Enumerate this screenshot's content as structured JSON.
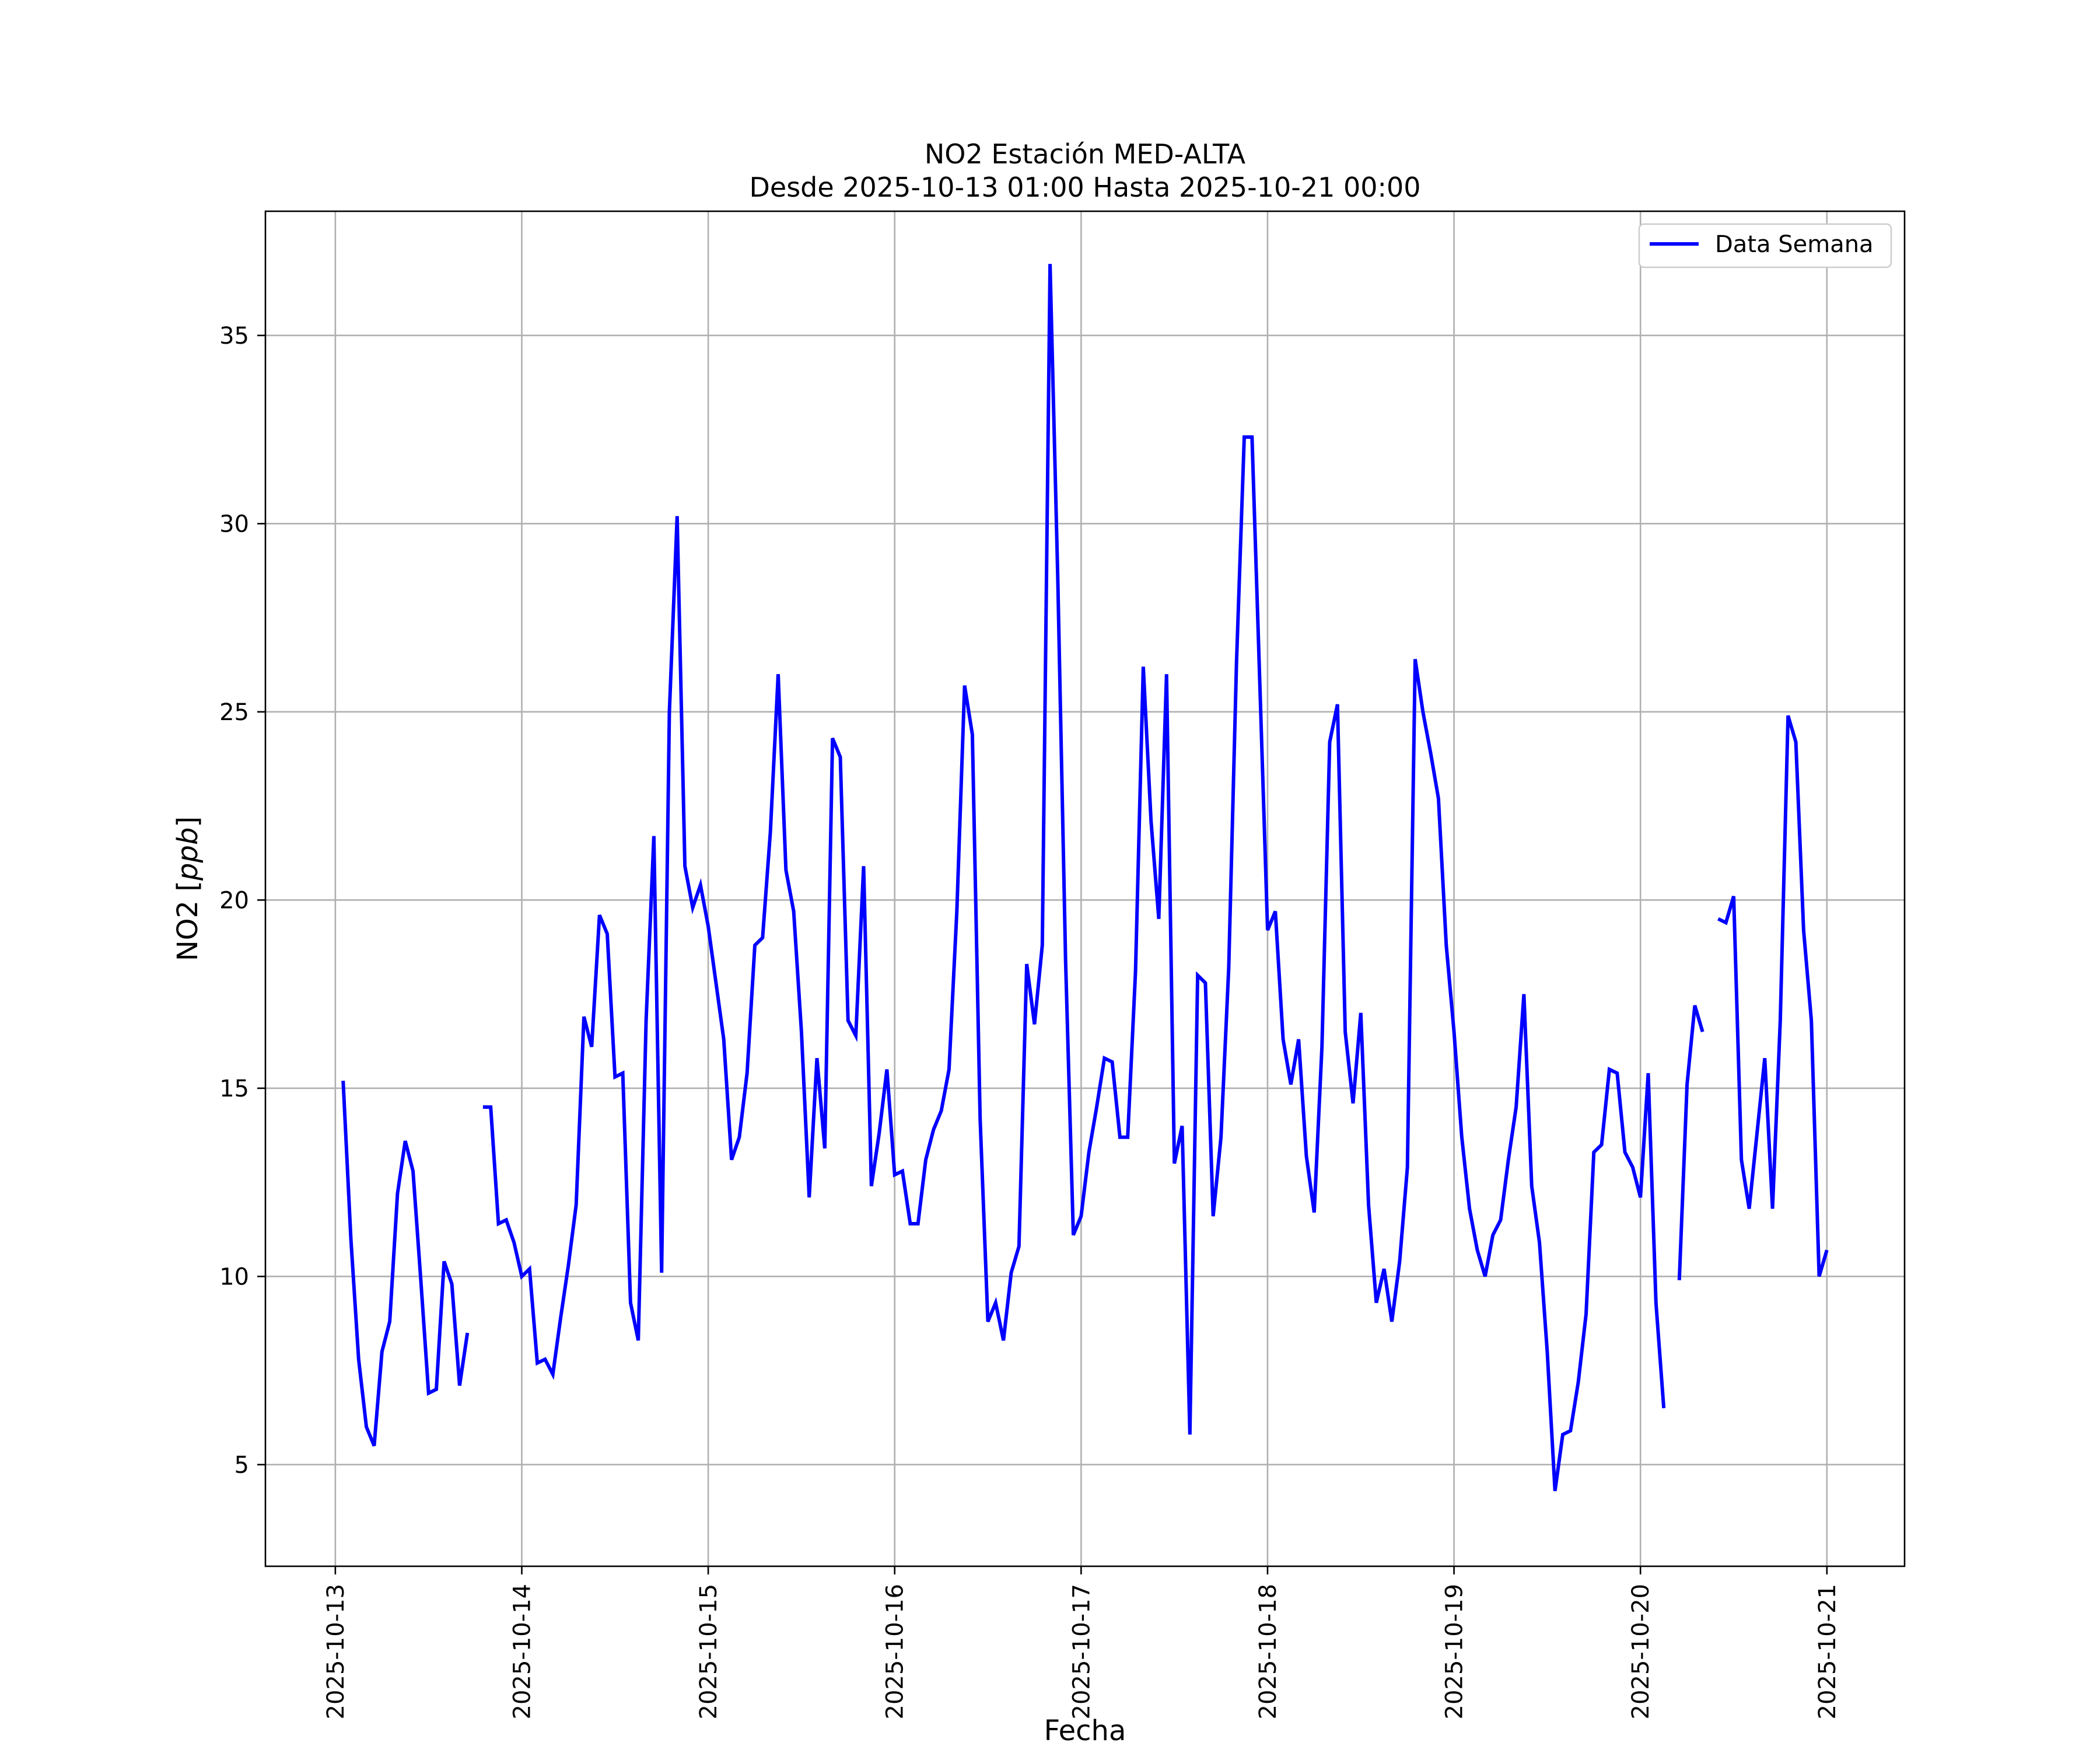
{
  "chart_data": {
    "type": "line",
    "title_line1": "NO2 Estación MED-ALTA",
    "title_line2": "Desde 2025-10-13 01:00 Hasta 2025-10-21 00:00",
    "xlabel": "Fecha",
    "ylabel": "NO2 [ppb]",
    "ylim": [
      2.3,
      38.3
    ],
    "xlim": [
      "2025-10-12 15:00",
      "2025-10-21 10:00"
    ],
    "x_ticks": [
      "2025-10-13",
      "2025-10-14",
      "2025-10-15",
      "2025-10-16",
      "2025-10-17",
      "2025-10-18",
      "2025-10-19",
      "2025-10-20",
      "2025-10-21"
    ],
    "y_ticks": [
      5,
      10,
      15,
      20,
      25,
      30,
      35
    ],
    "grid": true,
    "legend": "top-right",
    "line_color": "#0000ff",
    "series": [
      {
        "name": "Data Semana",
        "points": [
          [
            "2025-10-13 01:00",
            15.2
          ],
          [
            "2025-10-13 02:00",
            11.0
          ],
          [
            "2025-10-13 03:00",
            7.8
          ],
          [
            "2025-10-13 04:00",
            6.0
          ],
          [
            "2025-10-13 05:00",
            5.5
          ],
          [
            "2025-10-13 06:00",
            8.0
          ],
          [
            "2025-10-13 07:00",
            8.8
          ],
          [
            "2025-10-13 08:00",
            12.2
          ],
          [
            "2025-10-13 09:00",
            13.6
          ],
          [
            "2025-10-13 10:00",
            12.8
          ],
          [
            "2025-10-13 11:00",
            9.9
          ],
          [
            "2025-10-13 12:00",
            6.9
          ],
          [
            "2025-10-13 13:00",
            7.0
          ],
          [
            "2025-10-13 14:00",
            10.4
          ],
          [
            "2025-10-13 15:00",
            9.8
          ],
          [
            "2025-10-13 16:00",
            7.1
          ],
          [
            "2025-10-13 17:00",
            8.5
          ],
          [
            "2025-10-13 18:00",
            null
          ],
          [
            "2025-10-13 19:00",
            14.5
          ],
          [
            "2025-10-13 20:00",
            14.5
          ],
          [
            "2025-10-13 21:00",
            11.4
          ],
          [
            "2025-10-13 22:00",
            11.5
          ],
          [
            "2025-10-13 23:00",
            10.9
          ],
          [
            "2025-10-14 00:00",
            10.0
          ],
          [
            "2025-10-14 01:00",
            10.2
          ],
          [
            "2025-10-14 02:00",
            7.7
          ],
          [
            "2025-10-14 03:00",
            7.8
          ],
          [
            "2025-10-14 04:00",
            7.4
          ],
          [
            "2025-10-14 05:00",
            8.9
          ],
          [
            "2025-10-14 06:00",
            10.3
          ],
          [
            "2025-10-14 07:00",
            11.9
          ],
          [
            "2025-10-14 08:00",
            16.9
          ],
          [
            "2025-10-14 09:00",
            16.1
          ],
          [
            "2025-10-14 10:00",
            19.6
          ],
          [
            "2025-10-14 11:00",
            19.1
          ],
          [
            "2025-10-14 12:00",
            15.3
          ],
          [
            "2025-10-14 13:00",
            15.4
          ],
          [
            "2025-10-14 14:00",
            9.3
          ],
          [
            "2025-10-14 15:00",
            8.3
          ],
          [
            "2025-10-14 16:00",
            16.8
          ],
          [
            "2025-10-14 17:00",
            21.7
          ],
          [
            "2025-10-14 18:00",
            10.1
          ],
          [
            "2025-10-14 19:00",
            25.0
          ],
          [
            "2025-10-14 20:00",
            30.2
          ],
          [
            "2025-10-14 21:00",
            20.9
          ],
          [
            "2025-10-14 22:00",
            19.8
          ],
          [
            "2025-10-14 23:00",
            20.4
          ],
          [
            "2025-10-15 00:00",
            19.3
          ],
          [
            "2025-10-15 01:00",
            17.8
          ],
          [
            "2025-10-15 02:00",
            16.3
          ],
          [
            "2025-10-15 03:00",
            13.1
          ],
          [
            "2025-10-15 04:00",
            13.7
          ],
          [
            "2025-10-15 05:00",
            15.4
          ],
          [
            "2025-10-15 06:00",
            18.8
          ],
          [
            "2025-10-15 07:00",
            19.0
          ],
          [
            "2025-10-15 08:00",
            21.8
          ],
          [
            "2025-10-15 09:00",
            26.0
          ],
          [
            "2025-10-15 10:00",
            20.8
          ],
          [
            "2025-10-15 11:00",
            19.7
          ],
          [
            "2025-10-15 12:00",
            16.5
          ],
          [
            "2025-10-15 13:00",
            12.1
          ],
          [
            "2025-10-15 14:00",
            15.8
          ],
          [
            "2025-10-15 15:00",
            13.4
          ],
          [
            "2025-10-15 16:00",
            24.3
          ],
          [
            "2025-10-15 17:00",
            23.8
          ],
          [
            "2025-10-15 18:00",
            16.8
          ],
          [
            "2025-10-15 19:00",
            16.4
          ],
          [
            "2025-10-15 20:00",
            20.9
          ],
          [
            "2025-10-15 21:00",
            12.4
          ],
          [
            "2025-10-15 22:00",
            13.8
          ],
          [
            "2025-10-15 23:00",
            15.5
          ],
          [
            "2025-10-16 00:00",
            12.7
          ],
          [
            "2025-10-16 01:00",
            12.8
          ],
          [
            "2025-10-16 02:00",
            11.4
          ],
          [
            "2025-10-16 03:00",
            11.4
          ],
          [
            "2025-10-16 04:00",
            13.1
          ],
          [
            "2025-10-16 05:00",
            13.9
          ],
          [
            "2025-10-16 06:00",
            14.4
          ],
          [
            "2025-10-16 07:00",
            15.5
          ],
          [
            "2025-10-16 08:00",
            19.7
          ],
          [
            "2025-10-16 09:00",
            25.7
          ],
          [
            "2025-10-16 10:00",
            24.4
          ],
          [
            "2025-10-16 11:00",
            14.2
          ],
          [
            "2025-10-16 12:00",
            8.8
          ],
          [
            "2025-10-16 13:00",
            9.3
          ],
          [
            "2025-10-16 14:00",
            8.3
          ],
          [
            "2025-10-16 15:00",
            10.1
          ],
          [
            "2025-10-16 16:00",
            10.8
          ],
          [
            "2025-10-16 17:00",
            18.3
          ],
          [
            "2025-10-16 18:00",
            16.7
          ],
          [
            "2025-10-16 19:00",
            18.8
          ],
          [
            "2025-10-16 20:00",
            36.9
          ],
          [
            "2025-10-16 21:00",
            28.5
          ],
          [
            "2025-10-16 22:00",
            18.4
          ],
          [
            "2025-10-16 23:00",
            11.1
          ],
          [
            "2025-10-17 00:00",
            11.6
          ],
          [
            "2025-10-17 01:00",
            13.3
          ],
          [
            "2025-10-17 02:00",
            14.5
          ],
          [
            "2025-10-17 03:00",
            15.8
          ],
          [
            "2025-10-17 04:00",
            15.7
          ],
          [
            "2025-10-17 05:00",
            13.7
          ],
          [
            "2025-10-17 06:00",
            13.7
          ],
          [
            "2025-10-17 07:00",
            18.1
          ],
          [
            "2025-10-17 08:00",
            26.2
          ],
          [
            "2025-10-17 09:00",
            22.1
          ],
          [
            "2025-10-17 10:00",
            19.5
          ],
          [
            "2025-10-17 11:00",
            26.0
          ],
          [
            "2025-10-17 12:00",
            13.0
          ],
          [
            "2025-10-17 13:00",
            14.0
          ],
          [
            "2025-10-17 14:00",
            5.8
          ],
          [
            "2025-10-17 15:00",
            18.0
          ],
          [
            "2025-10-17 16:00",
            17.8
          ],
          [
            "2025-10-17 17:00",
            11.6
          ],
          [
            "2025-10-17 18:00",
            13.7
          ],
          [
            "2025-10-17 19:00",
            18.2
          ],
          [
            "2025-10-17 20:00",
            26.3
          ],
          [
            "2025-10-17 21:00",
            32.3
          ],
          [
            "2025-10-17 22:00",
            32.3
          ],
          [
            "2025-10-17 23:00",
            25.8
          ],
          [
            "2025-10-18 00:00",
            19.2
          ],
          [
            "2025-10-18 01:00",
            19.7
          ],
          [
            "2025-10-18 02:00",
            16.3
          ],
          [
            "2025-10-18 03:00",
            15.1
          ],
          [
            "2025-10-18 04:00",
            16.3
          ],
          [
            "2025-10-18 05:00",
            13.2
          ],
          [
            "2025-10-18 06:00",
            11.7
          ],
          [
            "2025-10-18 07:00",
            16.1
          ],
          [
            "2025-10-18 08:00",
            24.2
          ],
          [
            "2025-10-18 09:00",
            25.2
          ],
          [
            "2025-10-18 10:00",
            16.5
          ],
          [
            "2025-10-18 11:00",
            14.6
          ],
          [
            "2025-10-18 12:00",
            17.0
          ],
          [
            "2025-10-18 13:00",
            11.9
          ],
          [
            "2025-10-18 14:00",
            9.3
          ],
          [
            "2025-10-18 15:00",
            10.2
          ],
          [
            "2025-10-18 16:00",
            8.8
          ],
          [
            "2025-10-18 17:00",
            10.4
          ],
          [
            "2025-10-18 18:00",
            12.9
          ],
          [
            "2025-10-18 19:00",
            26.4
          ],
          [
            "2025-10-18 20:00",
            25.0
          ],
          [
            "2025-10-18 21:00",
            23.9
          ],
          [
            "2025-10-18 22:00",
            22.7
          ],
          [
            "2025-10-18 23:00",
            18.8
          ],
          [
            "2025-10-19 00:00",
            16.5
          ],
          [
            "2025-10-19 01:00",
            13.7
          ],
          [
            "2025-10-19 02:00",
            11.8
          ],
          [
            "2025-10-19 03:00",
            10.7
          ],
          [
            "2025-10-19 04:00",
            10.0
          ],
          [
            "2025-10-19 05:00",
            11.1
          ],
          [
            "2025-10-19 06:00",
            11.5
          ],
          [
            "2025-10-19 07:00",
            13.1
          ],
          [
            "2025-10-19 08:00",
            14.5
          ],
          [
            "2025-10-19 09:00",
            17.5
          ],
          [
            "2025-10-19 10:00",
            12.4
          ],
          [
            "2025-10-19 11:00",
            10.9
          ],
          [
            "2025-10-19 12:00",
            8.0
          ],
          [
            "2025-10-19 13:00",
            4.3
          ],
          [
            "2025-10-19 14:00",
            5.8
          ],
          [
            "2025-10-19 15:00",
            5.9
          ],
          [
            "2025-10-19 16:00",
            7.2
          ],
          [
            "2025-10-19 17:00",
            9.0
          ],
          [
            "2025-10-19 18:00",
            13.3
          ],
          [
            "2025-10-19 19:00",
            13.5
          ],
          [
            "2025-10-19 20:00",
            15.5
          ],
          [
            "2025-10-19 21:00",
            15.4
          ],
          [
            "2025-10-19 22:00",
            13.3
          ],
          [
            "2025-10-19 23:00",
            12.9
          ],
          [
            "2025-10-20 00:00",
            12.1
          ],
          [
            "2025-10-20 01:00",
            15.4
          ],
          [
            "2025-10-20 02:00",
            9.3
          ],
          [
            "2025-10-20 03:00",
            6.5
          ],
          [
            "2025-10-20 04:00",
            null
          ],
          [
            "2025-10-20 05:00",
            9.9
          ],
          [
            "2025-10-20 06:00",
            15.1
          ],
          [
            "2025-10-20 07:00",
            17.2
          ],
          [
            "2025-10-20 08:00",
            16.5
          ],
          [
            "2025-10-20 09:00",
            null
          ],
          [
            "2025-10-20 10:00",
            19.5
          ],
          [
            "2025-10-20 11:00",
            19.4
          ],
          [
            "2025-10-20 12:00",
            20.1
          ],
          [
            "2025-10-20 13:00",
            13.1
          ],
          [
            "2025-10-20 14:00",
            11.8
          ],
          [
            "2025-10-20 15:00",
            13.8
          ],
          [
            "2025-10-20 16:00",
            15.8
          ],
          [
            "2025-10-20 17:00",
            11.8
          ],
          [
            "2025-10-20 18:00",
            16.8
          ],
          [
            "2025-10-20 19:00",
            24.9
          ],
          [
            "2025-10-20 20:00",
            24.2
          ],
          [
            "2025-10-20 21:00",
            19.2
          ],
          [
            "2025-10-20 22:00",
            16.8
          ],
          [
            "2025-10-20 23:00",
            10.0
          ],
          [
            "2025-10-21 00:00",
            10.7
          ]
        ]
      }
    ]
  }
}
